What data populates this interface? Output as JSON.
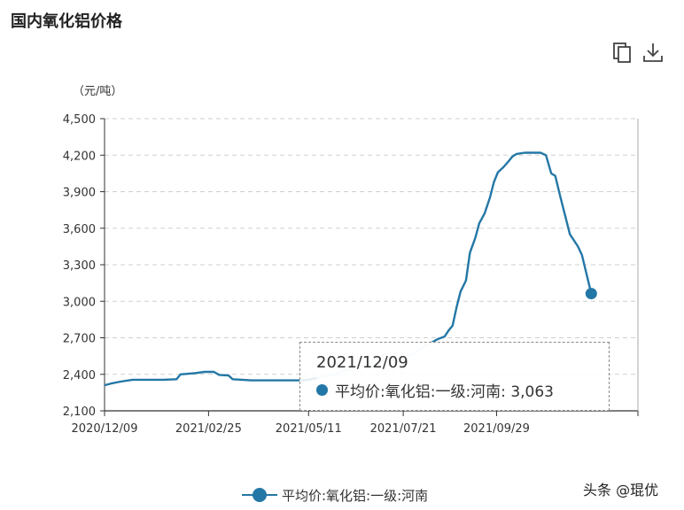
{
  "title": "国内氧化铝价格",
  "icons": {
    "copy": "copy-icon",
    "download": "download-icon"
  },
  "colors": {
    "series": "#2377a6",
    "highlight": "#cfe5f0",
    "grid": "#cfcfcf"
  },
  "tooltip": {
    "date": "2021/12/09",
    "text": "平均价:氧化铝:一级:河南: 3,063"
  },
  "watermark": "头条 @琨优",
  "chart_data": {
    "type": "line",
    "title": "国内氧化铝价格",
    "ylabel": "（元/吨）",
    "xlabel": "",
    "ylim": [
      2100,
      4500
    ],
    "yticks": [
      2100,
      2400,
      2700,
      3000,
      3300,
      3600,
      3900,
      4200,
      4500
    ],
    "ytick_labels": [
      "2,100",
      "2,400",
      "2,700",
      "3,000",
      "3,300",
      "3,600",
      "3,900",
      "4,200",
      "4,500"
    ],
    "xlim": [
      "2020-12-09",
      "2022-01-13"
    ],
    "xticks": [
      "2020-12-09",
      "2021-02-25",
      "2021-05-11",
      "2021-07-21",
      "2021-09-29"
    ],
    "xtick_labels": [
      "2020/12/09",
      "2021/02/25",
      "2021/05/11",
      "2021/07/21",
      "2021/09/29"
    ],
    "grid": true,
    "legend": "bottom",
    "series": [
      {
        "name": "平均价:氧化铝:一级:河南",
        "color": "#2377a6",
        "points": [
          [
            "2020-12-09",
            2310
          ],
          [
            "2020-12-14",
            2325
          ],
          [
            "2020-12-21",
            2340
          ],
          [
            "2020-12-30",
            2355
          ],
          [
            "2021-01-12",
            2355
          ],
          [
            "2021-01-22",
            2355
          ],
          [
            "2021-02-01",
            2360
          ],
          [
            "2021-02-04",
            2400
          ],
          [
            "2021-02-15",
            2410
          ],
          [
            "2021-02-22",
            2420
          ],
          [
            "2021-03-01",
            2420
          ],
          [
            "2021-03-05",
            2395
          ],
          [
            "2021-03-12",
            2390
          ],
          [
            "2021-03-15",
            2360
          ],
          [
            "2021-03-22",
            2355
          ],
          [
            "2021-03-29",
            2350
          ],
          [
            "2021-04-15",
            2350
          ],
          [
            "2021-05-05",
            2350
          ],
          [
            "2021-05-11",
            2355
          ],
          [
            "2021-05-17",
            2370
          ],
          [
            "2021-05-24",
            2385
          ],
          [
            "2021-05-31",
            2400
          ],
          [
            "2021-06-04",
            2420
          ],
          [
            "2021-06-11",
            2440
          ],
          [
            "2021-06-18",
            2460
          ],
          [
            "2021-06-25",
            2480
          ],
          [
            "2021-07-02",
            2500
          ],
          [
            "2021-07-09",
            2510
          ],
          [
            "2021-07-16",
            2520
          ],
          [
            "2021-07-23",
            2540
          ],
          [
            "2021-07-30",
            2580
          ],
          [
            "2021-08-06",
            2630
          ],
          [
            "2021-08-11",
            2660
          ],
          [
            "2021-08-16",
            2690
          ],
          [
            "2021-08-21",
            2710
          ],
          [
            "2021-08-24",
            2760
          ],
          [
            "2021-08-27",
            2800
          ],
          [
            "2021-08-30",
            2950
          ],
          [
            "2021-09-02",
            3080
          ],
          [
            "2021-09-06",
            3170
          ],
          [
            "2021-09-09",
            3400
          ],
          [
            "2021-09-13",
            3520
          ],
          [
            "2021-09-16",
            3640
          ],
          [
            "2021-09-20",
            3720
          ],
          [
            "2021-09-24",
            3850
          ],
          [
            "2021-09-27",
            3980
          ],
          [
            "2021-09-30",
            4060
          ],
          [
            "2021-10-04",
            4100
          ],
          [
            "2021-10-08",
            4150
          ],
          [
            "2021-10-11",
            4190
          ],
          [
            "2021-10-14",
            4210
          ],
          [
            "2021-10-20",
            4220
          ],
          [
            "2021-11-01",
            4220
          ],
          [
            "2021-11-05",
            4200
          ],
          [
            "2021-11-09",
            4050
          ],
          [
            "2021-11-12",
            4030
          ],
          [
            "2021-11-16",
            3850
          ],
          [
            "2021-11-20",
            3680
          ],
          [
            "2021-11-23",
            3550
          ],
          [
            "2021-11-26",
            3500
          ],
          [
            "2021-11-29",
            3450
          ],
          [
            "2021-12-02",
            3380
          ],
          [
            "2021-12-06",
            3200
          ],
          [
            "2021-12-09",
            3063
          ]
        ],
        "highlight_range": [
          "2021-05-13",
          "2021-08-13"
        ]
      }
    ]
  }
}
